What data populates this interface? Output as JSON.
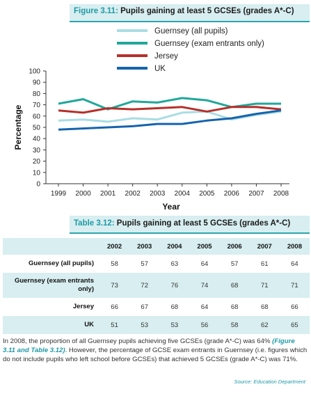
{
  "figure": {
    "number": "Figure 3.11:",
    "title": "Pupils gaining at least 5 GCSEs (grades A*-C)"
  },
  "table": {
    "number": "Table 3.12:",
    "title": "Pupils gaining at least 5 GCSEs (grades A*-C)",
    "years": [
      "2002",
      "2003",
      "2004",
      "2005",
      "2006",
      "2007",
      "2008"
    ],
    "rows": [
      {
        "label": "Guernsey (all pupils)",
        "values": [
          "58",
          "57",
          "63",
          "64",
          "57",
          "61",
          "64"
        ]
      },
      {
        "label": "Guernsey (exam entrants only)",
        "values": [
          "73",
          "72",
          "76",
          "74",
          "68",
          "71",
          "71"
        ]
      },
      {
        "label": "Jersey",
        "values": [
          "66",
          "67",
          "68",
          "64",
          "68",
          "68",
          "66"
        ]
      },
      {
        "label": "UK",
        "values": [
          "51",
          "53",
          "53",
          "56",
          "58",
          "62",
          "65"
        ]
      }
    ],
    "source": "Source: Education Department"
  },
  "paragraph": {
    "part1": "In 2008, the proportion of all Guernsey pupils achieving five GCSEs (grade A*-C) was 64% ",
    "ref": "(Figure 3.11 and Table 3.12)",
    "part2": ". However, the percentage of GCSE exam entrants in Guernsey (i.e. figures which do not include pupils who left school before GCSEs) that achieved 5 GCSEs (grade A*-C) was 71%."
  },
  "chart_data": {
    "type": "line",
    "xlabel": "Year",
    "ylabel": "Percentage",
    "ylim": [
      0,
      100
    ],
    "yticks": [
      "0",
      "10",
      "20",
      "30",
      "40",
      "50",
      "60",
      "70",
      "80",
      "90",
      "100"
    ],
    "x": [
      "1999",
      "2000",
      "2001",
      "2002",
      "2003",
      "2004",
      "2005",
      "2006",
      "2007",
      "2008"
    ],
    "legend_position": "top-right",
    "grid": false,
    "series": [
      {
        "name": "Guernsey (all pupils)",
        "color": "#a9dde3",
        "values": [
          56,
          57,
          55,
          58,
          57,
          63,
          64,
          57,
          61,
          64
        ]
      },
      {
        "name": "Guernsey (exam entrants only)",
        "color": "#1fa79a",
        "values": [
          71,
          75,
          66,
          73,
          72,
          76,
          74,
          68,
          71,
          71
        ]
      },
      {
        "name": "Jersey",
        "color": "#b5302a",
        "values": [
          65,
          63,
          67,
          66,
          67,
          68,
          64,
          68,
          68,
          66
        ]
      },
      {
        "name": "UK",
        "color": "#1563ad",
        "values": [
          48,
          49,
          50,
          51,
          53,
          53,
          56,
          58,
          62,
          65
        ]
      }
    ]
  }
}
